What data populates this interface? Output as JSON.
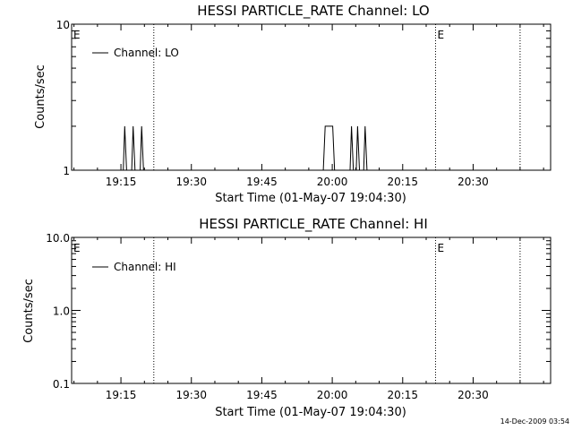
{
  "footer_date": "14-Dec-2009 03:54",
  "chart_data": [
    {
      "type": "line",
      "title": "HESSI PARTICLE_RATE Channel: LO",
      "xlabel": "Start Time (01-May-07 19:04:30)",
      "ylabel": "Counts/sec",
      "yscale": "log",
      "ylim": [
        1,
        10
      ],
      "yticks": [
        1,
        10
      ],
      "ytick_labels": [
        "1",
        "10"
      ],
      "x_unit": "minutes after 19:04:30",
      "xlim": [
        0,
        102
      ],
      "xticks": [
        10.5,
        25.5,
        40.5,
        55.5,
        70.5,
        85.5
      ],
      "xtick_labels": [
        "19:15",
        "19:30",
        "19:45",
        "20:00",
        "20:15",
        "20:30"
      ],
      "legend": {
        "entries": [
          "Channel: LO"
        ],
        "placement": "top-left"
      },
      "markers": [
        {
          "label": "E",
          "x": 0
        },
        {
          "x": 17.5
        },
        {
          "label": "E",
          "x": 77.5
        },
        {
          "x": 95.5
        }
      ],
      "series": [
        {
          "name": "Channel: LO",
          "points": [
            [
              0,
              1
            ],
            [
              11,
              1
            ],
            [
              11.3,
              2
            ],
            [
              11.7,
              1
            ],
            [
              12.8,
              1
            ],
            [
              13.1,
              2
            ],
            [
              13.5,
              1
            ],
            [
              14.6,
              1
            ],
            [
              14.9,
              2
            ],
            [
              15.3,
              1
            ],
            [
              53.6,
              1
            ],
            [
              54,
              2
            ],
            [
              55.6,
              2
            ],
            [
              56,
              1
            ],
            [
              59.3,
              1
            ],
            [
              59.6,
              2
            ],
            [
              60,
              1
            ],
            [
              60.6,
              1
            ],
            [
              60.9,
              2
            ],
            [
              61.3,
              1
            ],
            [
              62.2,
              1
            ],
            [
              62.5,
              2
            ],
            [
              62.9,
              1
            ],
            [
              100,
              1
            ]
          ]
        }
      ]
    },
    {
      "type": "line",
      "title": "HESSI PARTICLE_RATE Channel: HI",
      "xlabel": "Start Time (01-May-07 19:04:30)",
      "ylabel": "Counts/sec",
      "yscale": "log",
      "ylim": [
        0.1,
        10
      ],
      "yticks": [
        0.1,
        1,
        10
      ],
      "ytick_labels": [
        "0.1",
        "1.0",
        "10.0"
      ],
      "x_unit": "minutes after 19:04:30",
      "xlim": [
        0,
        102
      ],
      "xticks": [
        10.5,
        25.5,
        40.5,
        55.5,
        70.5,
        85.5
      ],
      "xtick_labels": [
        "19:15",
        "19:30",
        "19:45",
        "20:00",
        "20:15",
        "20:30"
      ],
      "legend": {
        "entries": [
          "Channel: HI"
        ],
        "placement": "top-left"
      },
      "markers": [
        {
          "label": "E",
          "x": 0
        },
        {
          "x": 17.5
        },
        {
          "label": "E",
          "x": 77.5
        },
        {
          "x": 95.5
        }
      ],
      "series": [
        {
          "name": "Channel: HI",
          "points": []
        }
      ]
    }
  ]
}
